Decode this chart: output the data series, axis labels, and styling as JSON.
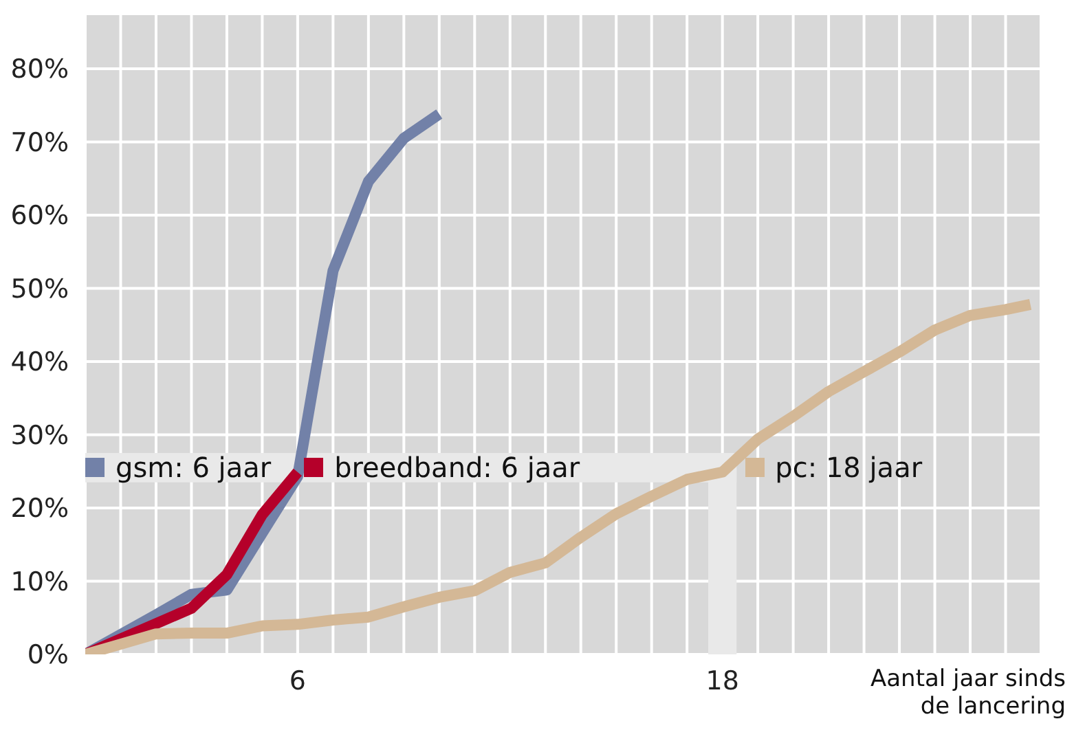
{
  "chart_data": {
    "type": "line",
    "xlabel": "Aantal jaar sinds de lancering",
    "xlim": [
      0,
      27
    ],
    "xticks": [
      {
        "value": 0,
        "label": null
      },
      {
        "value": 1,
        "label": null
      },
      {
        "value": 2,
        "label": null
      },
      {
        "value": 3,
        "label": null
      },
      {
        "value": 4,
        "label": null
      },
      {
        "value": 5,
        "label": null
      },
      6,
      {
        "value": 7,
        "label": null
      },
      {
        "value": 8,
        "label": null
      },
      {
        "value": 9,
        "label": null
      },
      {
        "value": 10,
        "label": null
      },
      {
        "value": 11,
        "label": null
      },
      {
        "value": 12,
        "label": null
      },
      {
        "value": 13,
        "label": null
      },
      {
        "value": 14,
        "label": null
      },
      {
        "value": 15,
        "label": null
      },
      {
        "value": 16,
        "label": null
      },
      {
        "value": 17,
        "label": null
      },
      18,
      {
        "value": 19,
        "label": null
      },
      {
        "value": 20,
        "label": null
      },
      {
        "value": 21,
        "label": null
      },
      {
        "value": 22,
        "label": null
      },
      {
        "value": 23,
        "label": null
      },
      {
        "value": 24,
        "label": null
      },
      {
        "value": 25,
        "label": null
      },
      {
        "value": 26,
        "label": null
      }
    ],
    "ylim": [
      0,
      87.5
    ],
    "yticks": [
      {
        "value": 0,
        "label": "0%"
      },
      {
        "value": 10,
        "label": "10%"
      },
      {
        "value": 20,
        "label": "20%"
      },
      {
        "value": 30,
        "label": "30%"
      },
      {
        "value": 40,
        "label": "40%"
      },
      {
        "value": 50,
        "label": "50%"
      },
      {
        "value": 60,
        "label": "60%"
      },
      {
        "value": 70,
        "label": "70%"
      },
      {
        "value": 80,
        "label": "80%"
      }
    ],
    "grid": true,
    "legend": "left",
    "line_style": "solid",
    "bands": [
      {
        "axis": "x",
        "from": 17.6,
        "to": 18.4,
        "color": "#e9e9e9"
      },
      {
        "axis": "y",
        "from": 23.5,
        "to": 27.5,
        "color": "#e9e9e9"
      }
    ],
    "series": [
      {
        "name": "gsm: 6 jaar",
        "color": "#7281a8",
        "x": [
          0,
          1,
          2,
          3,
          4,
          5,
          6,
          7,
          8,
          9,
          10
        ],
        "values": [
          0,
          2.7,
          5.4,
          8.2,
          8.8,
          16.6,
          24.3,
          52.4,
          64.6,
          70.5,
          73.8
        ]
      },
      {
        "name": "breedband: 6 jaar",
        "color": "#b5002a",
        "x": [
          0,
          1,
          2,
          3,
          4,
          5,
          6
        ],
        "values": [
          0,
          2.1,
          4.2,
          6.3,
          10.9,
          19.1,
          24.9
        ]
      },
      {
        "name": "pc: 18 jaar",
        "color": "#d4b896",
        "x": [
          0,
          1,
          2,
          3,
          4,
          5,
          6,
          7,
          8,
          9,
          10,
          11,
          12,
          13,
          14,
          15,
          16,
          17,
          18,
          19,
          20,
          21,
          22,
          23,
          24,
          25,
          26,
          26.7
        ],
        "values": [
          0,
          1.4,
          2.8,
          2.9,
          2.9,
          3.9,
          4.1,
          4.7,
          5.1,
          6.5,
          7.8,
          8.7,
          11.2,
          12.5,
          16,
          19.2,
          21.6,
          23.9,
          24.9,
          29.4,
          32.5,
          35.9,
          38.6,
          41.3,
          44.3,
          46.3,
          47.1,
          47.8
        ]
      }
    ]
  }
}
